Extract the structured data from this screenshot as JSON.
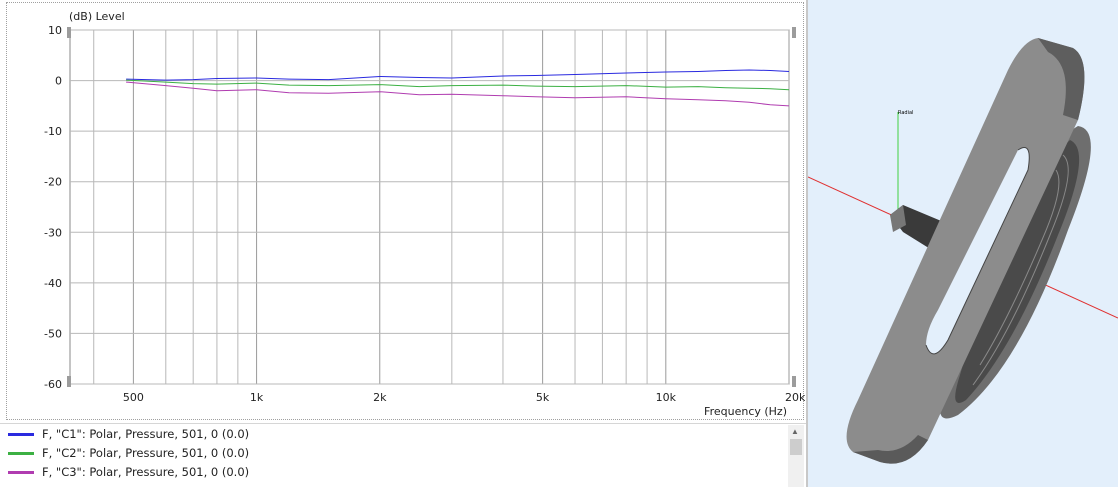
{
  "chart_data": {
    "type": "line",
    "ylabel_unit": "(dB)",
    "ylabel": "Level",
    "xlabel": "Frequency",
    "xlabel_unit": "(Hz)",
    "xscale": "log",
    "xlim": [
      350,
      20000
    ],
    "ylim": [
      -60,
      10
    ],
    "x_ticks": [
      {
        "v": 500,
        "l": "500"
      },
      {
        "v": 1000,
        "l": "1k"
      },
      {
        "v": 2000,
        "l": "2k"
      },
      {
        "v": 5000,
        "l": "5k"
      },
      {
        "v": 10000,
        "l": "10k"
      },
      {
        "v": 20000,
        "l": "20k"
      }
    ],
    "y_ticks": [
      {
        "v": 10,
        "l": "10"
      },
      {
        "v": 0,
        "l": "0"
      },
      {
        "v": -10,
        "l": "-10"
      },
      {
        "v": -20,
        "l": "-20"
      },
      {
        "v": -30,
        "l": "-30"
      },
      {
        "v": -40,
        "l": "-40"
      },
      {
        "v": -50,
        "l": "-50"
      },
      {
        "v": -60,
        "l": "-60"
      }
    ],
    "grid": true,
    "x": [
      480,
      600,
      700,
      800,
      1000,
      1200,
      1500,
      2000,
      2500,
      3000,
      4000,
      4800,
      6000,
      8000,
      10000,
      12000,
      14000,
      16000,
      18000,
      20000
    ],
    "series": [
      {
        "name": "F, \"C1\": Polar, Pressure, 501, 0 (0.0)",
        "color": "#2a2adf",
        "values": [
          0.3,
          0.1,
          0.2,
          0.4,
          0.5,
          0.3,
          0.2,
          0.8,
          0.6,
          0.5,
          0.9,
          1.0,
          1.2,
          1.5,
          1.7,
          1.8,
          2.0,
          2.1,
          2.0,
          1.8
        ]
      },
      {
        "name": "F, \"C2\": Polar, Pressure, 501, 0 (0.0)",
        "color": "#3cb043",
        "values": [
          0.1,
          -0.3,
          -0.6,
          -0.7,
          -0.5,
          -0.9,
          -1.0,
          -0.8,
          -1.2,
          -1.0,
          -0.9,
          -1.1,
          -1.2,
          -1.0,
          -1.3,
          -1.2,
          -1.4,
          -1.5,
          -1.6,
          -1.8
        ]
      },
      {
        "name": "F, \"C3\": Polar, Pressure, 501, 0 (0.0)",
        "color": "#b03cb0",
        "values": [
          -0.3,
          -1.0,
          -1.5,
          -2.0,
          -1.8,
          -2.4,
          -2.5,
          -2.2,
          -2.8,
          -2.7,
          -3.0,
          -3.2,
          -3.4,
          -3.2,
          -3.6,
          -3.8,
          -4.0,
          -4.3,
          -4.8,
          -5.0
        ]
      }
    ]
  },
  "legend": [
    {
      "label": "F, \"C1\": Polar, Pressure, 501, 0 (0.0)",
      "color": "#2a2adf"
    },
    {
      "label": "F, \"C2\": Polar, Pressure, 501, 0 (0.0)",
      "color": "#3cb043"
    },
    {
      "label": "F, \"C3\": Polar, Pressure, 501, 0 (0.0)",
      "color": "#b03cb0"
    }
  ],
  "view3d": {
    "axis_label": "Radial"
  }
}
